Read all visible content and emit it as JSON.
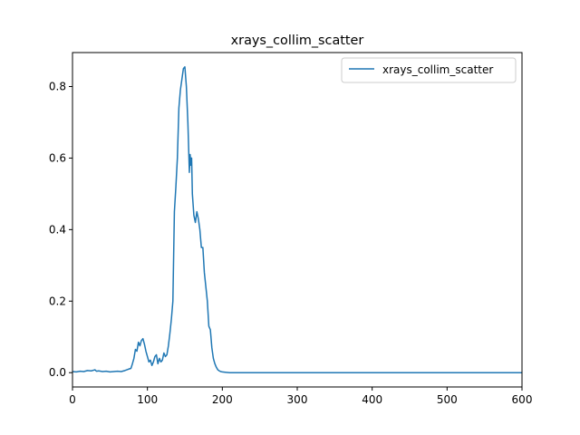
{
  "chart_data": {
    "type": "line",
    "title": "xrays_collim_scatter",
    "xlabel": "",
    "ylabel": "",
    "xlim": [
      0,
      600
    ],
    "ylim": [
      -0.04,
      0.895
    ],
    "xticks": [
      0,
      100,
      200,
      300,
      400,
      500,
      600
    ],
    "yticks": [
      0.0,
      0.2,
      0.4,
      0.6,
      0.8
    ],
    "xtick_labels": [
      "0",
      "100",
      "200",
      "300",
      "400",
      "500",
      "600"
    ],
    "ytick_labels": [
      "0.0",
      "0.2",
      "0.4",
      "0.6",
      "0.8"
    ],
    "grid": false,
    "legend_position": "top-right",
    "series": [
      {
        "name": "xrays_collim_scatter",
        "color": "#1f77b4",
        "x": [
          0,
          5,
          10,
          15,
          20,
          25,
          30,
          32,
          35,
          40,
          45,
          50,
          55,
          60,
          65,
          70,
          75,
          78,
          80,
          82,
          84,
          86,
          88,
          90,
          92,
          94,
          96,
          98,
          100,
          102,
          104,
          106,
          108,
          110,
          112,
          114,
          116,
          118,
          120,
          122,
          124,
          126,
          128,
          130,
          132,
          134,
          136,
          138,
          140,
          142,
          144,
          146,
          148,
          150,
          152,
          154,
          156,
          157,
          158,
          159,
          160,
          162,
          164,
          166,
          168,
          170,
          172,
          174,
          176,
          178,
          180,
          182,
          184,
          186,
          188,
          190,
          192,
          194,
          196,
          198,
          200,
          205,
          210,
          220,
          250,
          300,
          350,
          400,
          450,
          500,
          550,
          600
        ],
        "y": [
          0.003,
          0.002,
          0.004,
          0.003,
          0.006,
          0.005,
          0.008,
          0.004,
          0.005,
          0.003,
          0.004,
          0.002,
          0.003,
          0.004,
          0.003,
          0.006,
          0.01,
          0.012,
          0.025,
          0.04,
          0.065,
          0.06,
          0.085,
          0.075,
          0.09,
          0.095,
          0.08,
          0.06,
          0.045,
          0.03,
          0.035,
          0.02,
          0.03,
          0.045,
          0.05,
          0.025,
          0.04,
          0.03,
          0.035,
          0.055,
          0.045,
          0.05,
          0.075,
          0.11,
          0.15,
          0.2,
          0.45,
          0.52,
          0.6,
          0.74,
          0.79,
          0.82,
          0.85,
          0.855,
          0.8,
          0.7,
          0.56,
          0.61,
          0.58,
          0.6,
          0.5,
          0.44,
          0.42,
          0.45,
          0.43,
          0.4,
          0.35,
          0.35,
          0.28,
          0.24,
          0.2,
          0.13,
          0.12,
          0.07,
          0.04,
          0.025,
          0.015,
          0.008,
          0.005,
          0.003,
          0.002,
          0.001,
          0.0,
          0.0,
          0.0,
          0.0,
          0.0,
          0.0,
          0.0,
          0.0,
          0.0,
          0.0
        ]
      }
    ]
  }
}
